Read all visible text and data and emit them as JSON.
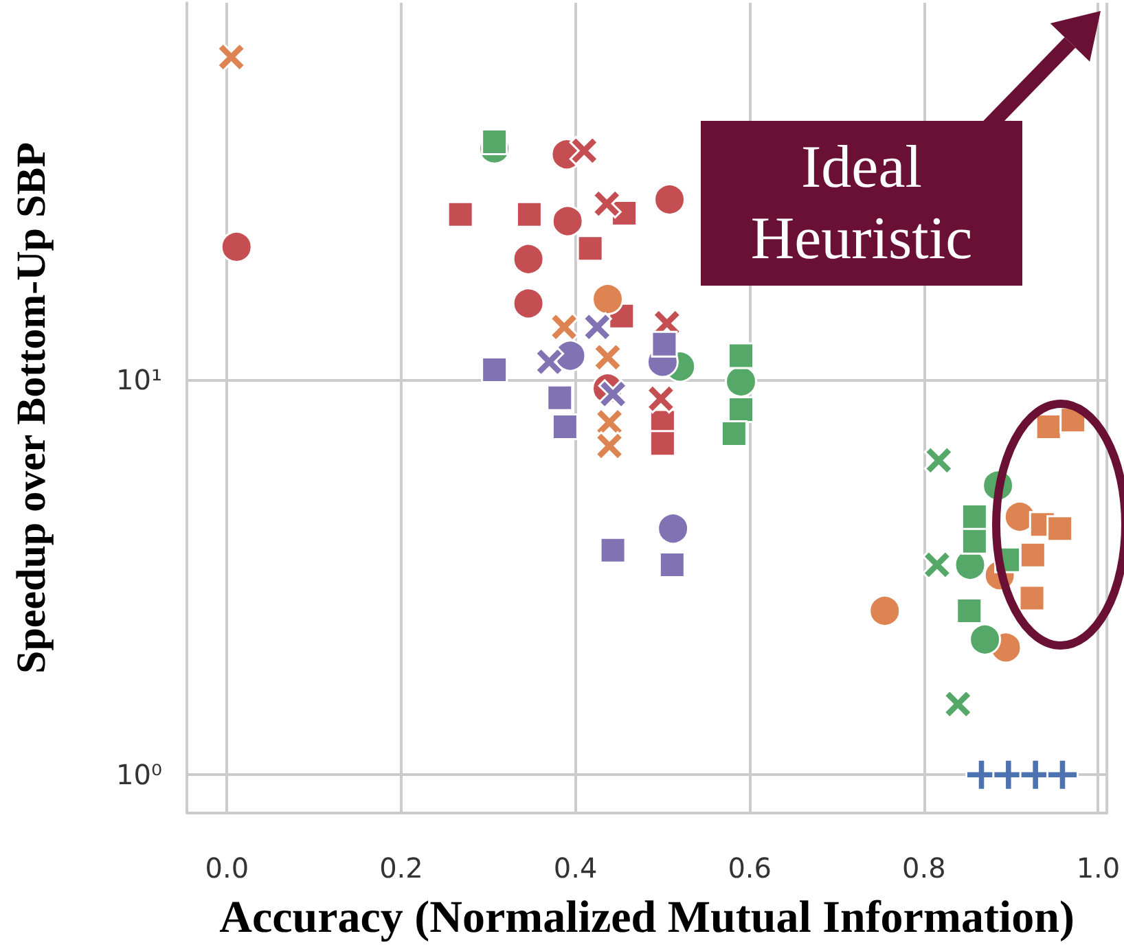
{
  "chart_data": {
    "type": "scatter",
    "xlabel": "Accuracy (Normalized Mutual Information)",
    "ylabel": "Speedup over Bottom-Up SBP",
    "log": "y",
    "grid": true,
    "xlim": [
      -0.046,
      1.01
    ],
    "xticks": [
      {
        "value": 0,
        "label": "0.0"
      },
      {
        "value": 0.2,
        "label": "0.2"
      },
      {
        "value": 0.4,
        "label": "0.4"
      },
      {
        "value": 0.6,
        "label": "0.6"
      },
      {
        "value": 0.8,
        "label": "0.8"
      },
      {
        "value": 1,
        "label": "1.0"
      }
    ],
    "ylim": [
      0.8,
      90
    ],
    "yticks": [
      {
        "value": 1,
        "label": "10⁰"
      },
      {
        "value": 10,
        "label": "10¹"
      }
    ],
    "annotations": [
      "Ideal Heuristic"
    ],
    "series": [
      {
        "color": "#c44e52",
        "marker": "circle",
        "x": [
          0.011,
          0.39,
          0.508,
          0.391,
          0.346,
          0.346,
          0.437
        ],
        "values": [
          21.7,
          37.2,
          28.6,
          25.2,
          20.2,
          15.6,
          9.5
        ]
      },
      {
        "color": "#c44e52",
        "marker": "square",
        "x": [
          0.268,
          0.347,
          0.456,
          0.417,
          0.453,
          0.5,
          0.5
        ],
        "values": [
          26.2,
          26.2,
          26.4,
          21.5,
          14.5,
          7.8,
          6.9
        ]
      },
      {
        "color": "#c44e52",
        "marker": "cross",
        "x": [
          0.436,
          0.505,
          0.498,
          0.41
        ],
        "values": [
          27.9,
          13.9,
          8.95,
          38
        ]
      },
      {
        "color": "#dd8452",
        "marker": "cross",
        "x": [
          0.005,
          0.387,
          0.437,
          0.439,
          0.439
        ],
        "values": [
          65.6,
          13.6,
          11.4,
          7.8,
          6.8
        ]
      },
      {
        "color": "#dd8452",
        "marker": "circle",
        "x": [
          0.437,
          0.755,
          0.91,
          0.887,
          0.894
        ],
        "values": [
          16,
          2.6,
          4.5,
          3.2,
          2.1
        ]
      },
      {
        "color": "#dd8452",
        "marker": "square",
        "x": [
          0.943,
          0.971,
          0.936,
          0.956,
          0.925,
          0.924
        ],
        "values": [
          7.6,
          7.9,
          4.3,
          4.2,
          3.6,
          2.8
        ]
      },
      {
        "color": "#55a868",
        "marker": "circle",
        "x": [
          0.307,
          0.59,
          0.52,
          0.885,
          0.853,
          0.87
        ],
        "values": [
          38.5,
          9.9,
          10.8,
          5.4,
          3.4,
          2.2
        ]
      },
      {
        "color": "#55a868",
        "marker": "square",
        "x": [
          0.307,
          0.59,
          0.59,
          0.582,
          0.858,
          0.858,
          0.896,
          0.852
        ],
        "values": [
          40,
          11.5,
          8.4,
          7.3,
          4.5,
          3.9,
          3.5,
          2.6
        ]
      },
      {
        "color": "#55a868",
        "marker": "cross",
        "x": [
          0.817,
          0.815,
          0.839
        ],
        "values": [
          6.25,
          3.4,
          1.51
        ]
      },
      {
        "color": "#8172b3",
        "marker": "circle",
        "x": [
          0.394,
          0.5,
          0.512
        ],
        "values": [
          11.5,
          11.1,
          4.2
        ]
      },
      {
        "color": "#8172b3",
        "marker": "square",
        "x": [
          0.307,
          0.382,
          0.388,
          0.502,
          0.443,
          0.511
        ],
        "values": [
          10.6,
          9.0,
          7.6,
          12.3,
          3.7,
          3.4
        ]
      },
      {
        "color": "#8172b3",
        "marker": "cross",
        "x": [
          0.425,
          0.443,
          0.37
        ],
        "values": [
          13.6,
          9.2,
          11.1
        ]
      },
      {
        "color": "#4c72b0",
        "marker": "plus",
        "x": [
          0.866,
          0.897,
          0.928,
          0.959
        ],
        "values": [
          1,
          1,
          1,
          1
        ]
      }
    ]
  }
}
